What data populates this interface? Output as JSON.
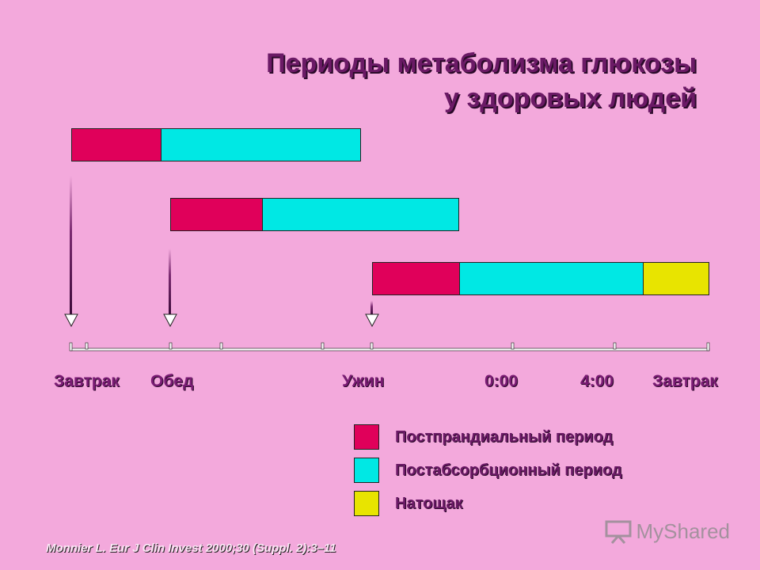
{
  "title": {
    "line1": "Периоды метаболизма глюкозы",
    "line2": "у здоровых  людей"
  },
  "colors": {
    "postprandial": "#e0005a",
    "postabsorptive": "#00e8e4",
    "fasting": "#e8e400",
    "background": "#f3a9dc"
  },
  "timeline": {
    "labels": [
      "Завтрак",
      "Обед",
      "Ужин",
      "0:00",
      "4:00",
      "Завтрак"
    ]
  },
  "legend": [
    {
      "label": "Постпрандиальный период",
      "color_key": "postprandial"
    },
    {
      "label": "Постабсорбционный период",
      "color_key": "postabsorptive"
    },
    {
      "label": "Натощак",
      "color_key": "fasting"
    }
  ],
  "citation": "Monnier L. Eur J Clin Invest 2000;30 (Suppl. 2):3–11",
  "watermark": "MyShared"
}
